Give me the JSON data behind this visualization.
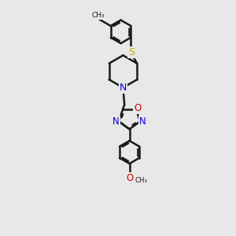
{
  "bg_color": "#e8e8e8",
  "bond_color": "#1a1a1a",
  "bond_width": 1.8,
  "N_color": "#0000ee",
  "O_color": "#dd0000",
  "S_color": "#ccaa00",
  "figsize": [
    3.0,
    3.0
  ],
  "dpi": 100,
  "xlim": [
    -1.8,
    1.8
  ],
  "ylim": [
    -5.2,
    3.2
  ]
}
